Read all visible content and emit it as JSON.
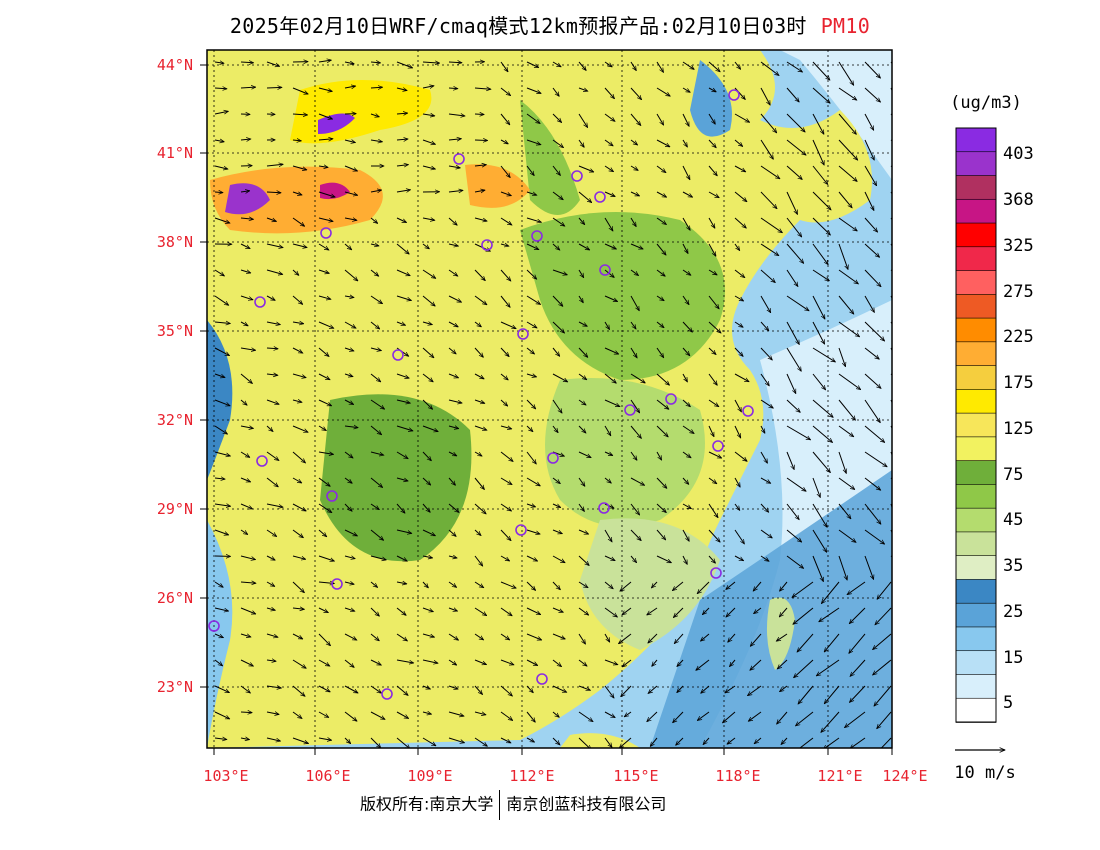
{
  "title": {
    "main": "2025年02月10日WRF/cmaq模式12km预报产品:02月10日03时",
    "variable": "PM10"
  },
  "lat_labels": [
    "44°N",
    "41°N",
    "38°N",
    "35°N",
    "32°N",
    "29°N",
    "26°N",
    "23°N"
  ],
  "lon_labels": [
    "103°E",
    "106°E",
    "109°E",
    "112°E",
    "115°E",
    "118°E",
    "121°E",
    "124°E"
  ],
  "legend": {
    "unit": "(ug/m3)",
    "levels": [
      "403",
      "368",
      "325",
      "275",
      "225",
      "175",
      "125",
      "75",
      "45",
      "35",
      "25",
      "15",
      "5"
    ],
    "colors": [
      "#8a2be2",
      "#9a33cc",
      "#b03060",
      "#c71585",
      "#ff0000",
      "#f0284a",
      "#ff6060",
      "#ee5a24",
      "#ff8c00",
      "#ffad33",
      "#f5ce3e",
      "#ffea00",
      "#f7e65a",
      "#f2f260",
      "#6faf3a",
      "#8fc848",
      "#b4dc6e",
      "#c9e29a",
      "#dfeec4",
      "#3b87c4",
      "#5aa3d8",
      "#88c8ee",
      "#b8e0f6",
      "#d8effb",
      "#ffffff"
    ]
  },
  "wind_scale": {
    "label": "10 m/s"
  },
  "credit": {
    "left": "版权所有:南京大学",
    "right": "南京创蓝科技有限公司"
  },
  "colors": {
    "label_red": "#e8232f",
    "station_marker": "#8a2be2"
  }
}
